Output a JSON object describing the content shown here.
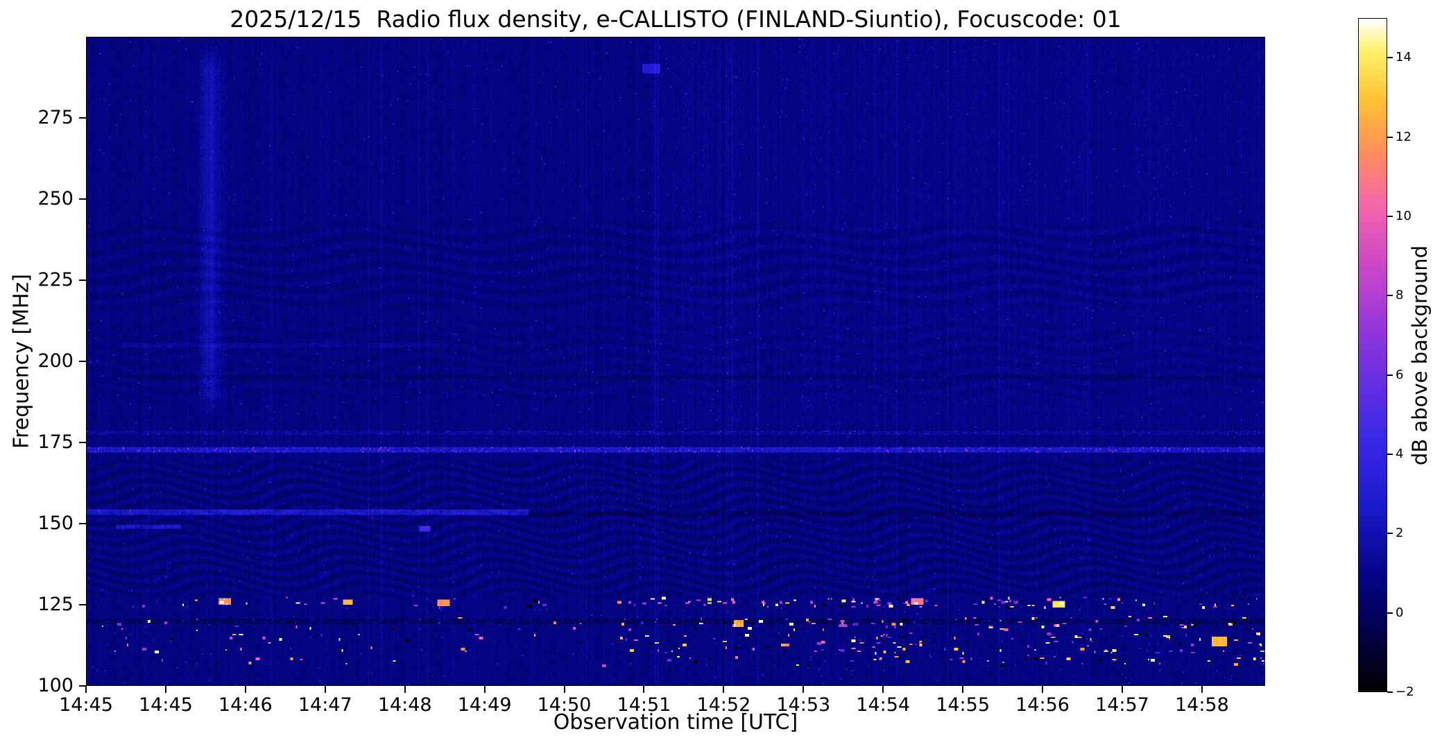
{
  "chart_data": {
    "type": "heatmap",
    "title": "2025/12/15  Radio flux density, e-CALLISTO (FINLAND-Siuntio), Focuscode: 01",
    "xlabel": "Observation time [UTC]",
    "ylabel": "Frequency [MHz]",
    "colorbar_label": "dB above background",
    "x_ticks": [
      "14:45",
      "14:45",
      "14:46",
      "14:47",
      "14:48",
      "14:49",
      "14:50",
      "14:51",
      "14:52",
      "14:53",
      "14:54",
      "14:55",
      "14:56",
      "14:57",
      "14:58"
    ],
    "x_tick_step_frac": 0.0676,
    "y_ticks": [
      275,
      250,
      225,
      200,
      175,
      150,
      125,
      100
    ],
    "y_range": [
      100,
      300
    ],
    "colorbar_ticks": [
      {
        "value": -2,
        "label": "−2"
      },
      {
        "value": 0,
        "label": "0"
      },
      {
        "value": 2,
        "label": "2"
      },
      {
        "value": 4,
        "label": "4"
      },
      {
        "value": 6,
        "label": "6"
      },
      {
        "value": 8,
        "label": "8"
      },
      {
        "value": 10,
        "label": "10"
      },
      {
        "value": 12,
        "label": "12"
      },
      {
        "value": 14,
        "label": "14"
      }
    ],
    "value_range": [
      -2,
      15
    ],
    "background_level_db": 0.8,
    "grid": false,
    "legend": false,
    "colormap_stops": [
      {
        "pos": 0.0,
        "color": "#000000"
      },
      {
        "pos": 0.1,
        "color": "#020253"
      },
      {
        "pos": 0.18,
        "color": "#05058c"
      },
      {
        "pos": 0.28,
        "color": "#1b1bd0"
      },
      {
        "pos": 0.38,
        "color": "#3c28e8"
      },
      {
        "pos": 0.47,
        "color": "#6b2fe0"
      },
      {
        "pos": 0.56,
        "color": "#a038d8"
      },
      {
        "pos": 0.65,
        "color": "#d44cc4"
      },
      {
        "pos": 0.73,
        "color": "#f868a8"
      },
      {
        "pos": 0.8,
        "color": "#ff8c5c"
      },
      {
        "pos": 0.88,
        "color": "#ffc233"
      },
      {
        "pos": 0.95,
        "color": "#fdf065"
      },
      {
        "pos": 1.0,
        "color": "#ffffff"
      }
    ],
    "features": [
      {
        "id": "rfi-line-172",
        "type": "speckled_line",
        "freq": 172.5,
        "t_start": 0,
        "t_end": 1,
        "base_boost": 1.3,
        "spike_chance": 0.1,
        "spike_max": 6
      },
      {
        "id": "speckle-line-178",
        "type": "speckled_line",
        "freq": 178,
        "t_start": 0,
        "t_end": 1,
        "base_boost": 0.1,
        "spike_chance": 0.05,
        "spike_max": 2.5
      },
      {
        "id": "streak-153",
        "type": "bright_streak",
        "freq": 153.5,
        "half_width": 0.8,
        "t_start": 0,
        "t_end": 0.375,
        "boost": 2.0
      },
      {
        "id": "streak-149",
        "type": "bright_streak",
        "freq": 149,
        "half_width": 0.6,
        "t_start": 0.025,
        "t_end": 0.08,
        "boost": 1.7
      },
      {
        "id": "faint-line-205",
        "type": "bright_streak",
        "freq": 205,
        "half_width": 0.6,
        "t_start": 0.03,
        "t_end": 0.3,
        "boost": 0.5
      },
      {
        "id": "dark-line-153-right",
        "type": "dark_line",
        "freq": 153,
        "half_width": 0.8,
        "t_start": 0.375,
        "t_end": 1,
        "drop": 0.55
      },
      {
        "id": "dark-line-195",
        "type": "dark_dashed_line",
        "freq": 195,
        "half_width": 0.7,
        "t_start": 0.02,
        "t_end": 1,
        "drop": 0.8
      },
      {
        "id": "dark-line-119",
        "type": "dark_dashed_line",
        "freq": 119.5,
        "half_width": 0.9,
        "t_start": 0,
        "t_end": 1,
        "drop": 1.2
      },
      {
        "id": "vertical-band-1445",
        "type": "vertical_band",
        "t_center": 0.105,
        "t_sigma": 0.006,
        "f_low": 183,
        "f_high": 298,
        "boost": 1.25
      },
      {
        "id": "file-seam",
        "type": "level_step",
        "t_split": 0.48,
        "f_low": 180,
        "f_high": 300,
        "delta": 0.15
      },
      {
        "id": "spot-291",
        "type": "spot",
        "t_start": 0.472,
        "t_end": 0.487,
        "f_low": 289,
        "f_high": 292,
        "boost": 2.2
      },
      {
        "id": "spot-148",
        "type": "spot",
        "t_start": 0.282,
        "t_end": 0.292,
        "f_low": 147.5,
        "f_high": 149,
        "boost": 4
      },
      {
        "id": "burst-a",
        "type": "spot",
        "t_start": 0.112,
        "t_end": 0.122,
        "f_low": 125,
        "f_high": 127,
        "boost": 11
      },
      {
        "id": "burst-b",
        "type": "spot",
        "t_start": 0.218,
        "t_end": 0.226,
        "f_low": 125,
        "f_high": 126.5,
        "boost": 12
      },
      {
        "id": "burst-c",
        "type": "spot",
        "t_start": 0.298,
        "t_end": 0.308,
        "f_low": 124.5,
        "f_high": 126.5,
        "boost": 11
      },
      {
        "id": "burst-d",
        "type": "spot",
        "t_start": 0.55,
        "t_end": 0.558,
        "f_low": 118,
        "f_high": 120,
        "boost": 12
      },
      {
        "id": "burst-e",
        "type": "spot",
        "t_start": 0.7,
        "t_end": 0.71,
        "f_low": 125,
        "f_high": 127,
        "boost": 10
      },
      {
        "id": "burst-f",
        "type": "spot",
        "t_start": 0.82,
        "t_end": 0.83,
        "f_low": 124,
        "f_high": 126,
        "boost": 13
      },
      {
        "id": "burst-g",
        "type": "spot",
        "t_start": 0.955,
        "t_end": 0.968,
        "f_low": 112,
        "f_high": 115,
        "boost": 12
      },
      {
        "id": "ripples-low",
        "type": "ripples",
        "f_low": 126,
        "f_high": 171,
        "amplitude": 0.85,
        "f_k": 2.0,
        "wobble": 5,
        "t_k": 50
      },
      {
        "id": "ripples-mid",
        "type": "ripples",
        "f_low": 186,
        "f_high": 214,
        "amplitude": 0.35,
        "f_k": 1.6,
        "wobble": 3,
        "t_k": 40
      },
      {
        "id": "ripples-high",
        "type": "ripples",
        "f_low": 215,
        "f_high": 244,
        "amplitude": 0.55,
        "f_k": 1.5,
        "wobble": 3,
        "t_k": 36
      },
      {
        "id": "rfi-bursts",
        "type": "bursts",
        "f_low": 105,
        "f_high": 128,
        "count": 420,
        "val_min": 4,
        "val_max": 15,
        "dark_fraction": 0.15
      }
    ]
  }
}
